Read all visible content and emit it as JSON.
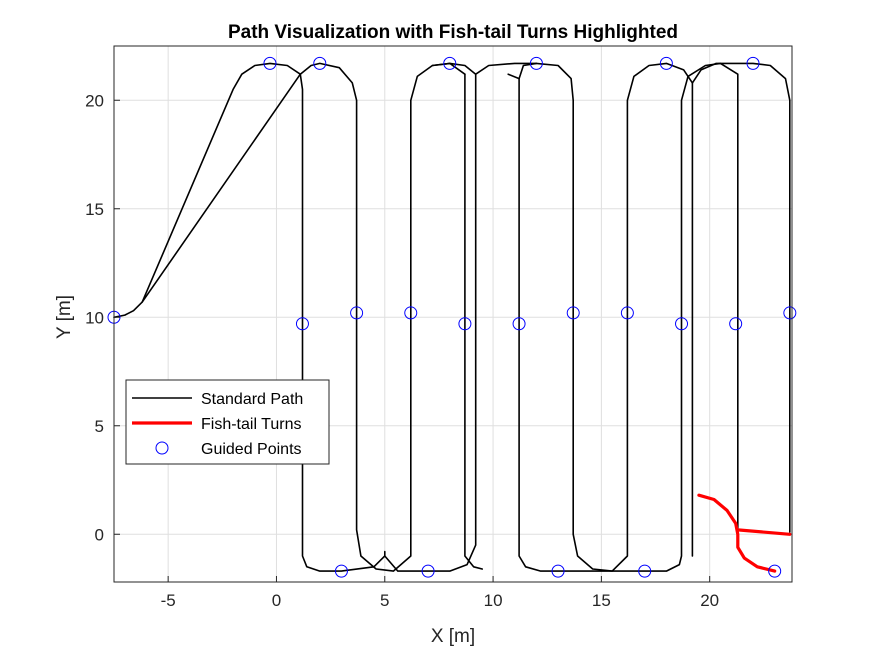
{
  "chart_data": {
    "type": "line",
    "title": "Path Visualization with Fish-tail Turns Highlighted",
    "xlabel": "X [m]",
    "ylabel": "Y [m]",
    "xlim": [
      -7.5,
      23.8
    ],
    "ylim": [
      -2.2,
      22.5
    ],
    "xticks": [
      -5,
      0,
      5,
      10,
      15,
      20
    ],
    "yticks": [
      0,
      5,
      10,
      15,
      20
    ],
    "grid": true,
    "legend_position": "lower-left",
    "colors": {
      "standard": "#000000",
      "fishtail": "#ff0000",
      "guided": "#0000ff"
    },
    "series": [
      {
        "name": "Standard Path",
        "style": "line",
        "segments": [
          [
            [
              -7.5,
              10.0
            ],
            [
              -7.0,
              10.1
            ],
            [
              -6.6,
              10.3
            ],
            [
              -6.2,
              10.7
            ],
            [
              -2.0,
              20.5
            ],
            [
              -1.6,
              21.2
            ],
            [
              -1.0,
              21.6
            ],
            [
              -0.3,
              21.7
            ],
            [
              0.5,
              21.6
            ],
            [
              1.1,
              21.2
            ],
            [
              1.2,
              20.5
            ],
            [
              1.2,
              -1.0
            ],
            [
              1.4,
              -1.5
            ],
            [
              2.0,
              -1.7
            ],
            [
              3.0,
              -1.7
            ],
            [
              4.5,
              -1.5
            ],
            [
              5.0,
              -1.0
            ],
            [
              5.0,
              -0.8
            ]
          ],
          [
            [
              -6.2,
              10.7
            ],
            [
              1.1,
              21.2
            ]
          ],
          [
            [
              1.1,
              21.2
            ],
            [
              1.6,
              21.6
            ],
            [
              2.0,
              21.7
            ],
            [
              2.9,
              21.5
            ],
            [
              3.5,
              20.8
            ],
            [
              3.7,
              20.0
            ],
            [
              3.7,
              0.2
            ],
            [
              3.9,
              -1.0
            ],
            [
              4.6,
              -1.6
            ],
            [
              5.4,
              -1.7
            ],
            [
              6.2,
              -1.0
            ],
            [
              6.2,
              20.0
            ],
            [
              6.5,
              21.1
            ],
            [
              7.2,
              21.6
            ],
            [
              8.0,
              21.7
            ],
            [
              8.7,
              21.2
            ]
          ],
          [
            [
              7.2,
              21.6
            ],
            [
              8.0,
              21.7
            ],
            [
              8.7,
              21.6
            ],
            [
              9.2,
              21.2
            ],
            [
              9.2,
              -0.5
            ],
            [
              8.8,
              -1.4
            ],
            [
              8.0,
              -1.7
            ],
            [
              7.0,
              -1.7
            ],
            [
              5.6,
              -1.7
            ],
            [
              5.0,
              -1.0
            ]
          ],
          [
            [
              8.7,
              21.2
            ],
            [
              8.7,
              20.0
            ],
            [
              8.7,
              -1.0
            ],
            [
              9.1,
              -1.5
            ],
            [
              9.5,
              -1.6
            ]
          ],
          [
            [
              9.2,
              21.2
            ],
            [
              9.8,
              21.6
            ],
            [
              11.0,
              21.7
            ],
            [
              12.0,
              21.7
            ],
            [
              13.0,
              21.6
            ],
            [
              13.6,
              21.0
            ],
            [
              13.7,
              20.0
            ],
            [
              13.7,
              0.0
            ],
            [
              13.9,
              -1.0
            ],
            [
              14.6,
              -1.6
            ],
            [
              15.5,
              -1.7
            ],
            [
              16.2,
              -1.0
            ],
            [
              16.2,
              20.0
            ],
            [
              16.5,
              21.1
            ],
            [
              17.2,
              21.6
            ],
            [
              18.0,
              21.7
            ],
            [
              18.8,
              21.4
            ],
            [
              19.2,
              20.8
            ],
            [
              19.2,
              -1.0
            ]
          ],
          [
            [
              11.2,
              21.0
            ],
            [
              11.2,
              -1.0
            ],
            [
              11.5,
              -1.5
            ],
            [
              12.2,
              -1.7
            ],
            [
              13.0,
              -1.7
            ],
            [
              14.0,
              -1.7
            ],
            [
              15.0,
              -1.7
            ],
            [
              16.0,
              -1.7
            ],
            [
              17.0,
              -1.7
            ],
            [
              18.0,
              -1.7
            ],
            [
              18.6,
              -1.4
            ],
            [
              18.7,
              -1.0
            ],
            [
              18.7,
              20.0
            ],
            [
              19.0,
              21.1
            ],
            [
              19.8,
              21.6
            ],
            [
              20.5,
              21.7
            ],
            [
              21.3,
              21.2
            ],
            [
              21.3,
              0.2
            ]
          ],
          [
            [
              10.7,
              21.2
            ],
            [
              11.2,
              21.0
            ]
          ],
          [
            [
              12.0,
              21.7
            ],
            [
              11.4,
              21.6
            ],
            [
              11.2,
              21.0
            ]
          ],
          [
            [
              19.2,
              20.8
            ],
            [
              19.6,
              21.4
            ],
            [
              20.3,
              21.7
            ],
            [
              21.5,
              21.7
            ],
            [
              22.0,
              21.7
            ],
            [
              22.8,
              21.6
            ],
            [
              23.5,
              21.0
            ],
            [
              23.7,
              20.0
            ],
            [
              23.7,
              0.1
            ]
          ]
        ]
      },
      {
        "name": "Fish-tail Turns",
        "style": "line",
        "segments": [
          [
            [
              19.5,
              1.8
            ],
            [
              20.2,
              1.6
            ],
            [
              20.8,
              1.1
            ],
            [
              21.2,
              0.5
            ],
            [
              21.3,
              0.0
            ],
            [
              21.3,
              -0.6
            ],
            [
              21.6,
              -1.1
            ],
            [
              22.2,
              -1.5
            ],
            [
              23.0,
              -1.7
            ]
          ],
          [
            [
              21.3,
              0.2
            ],
            [
              23.7,
              0.0
            ]
          ]
        ]
      },
      {
        "name": "Guided Points",
        "style": "marker",
        "points": [
          [
            -7.5,
            10.0
          ],
          [
            -0.3,
            21.7
          ],
          [
            2.0,
            21.7
          ],
          [
            1.2,
            9.7
          ],
          [
            3.7,
            10.2
          ],
          [
            6.2,
            10.2
          ],
          [
            8.7,
            9.7
          ],
          [
            8.0,
            21.7
          ],
          [
            12.0,
            21.7
          ],
          [
            11.2,
            9.7
          ],
          [
            13.7,
            10.2
          ],
          [
            16.2,
            10.2
          ],
          [
            18.7,
            9.7
          ],
          [
            18.0,
            21.7
          ],
          [
            22.0,
            21.7
          ],
          [
            21.2,
            9.7
          ],
          [
            23.7,
            10.2
          ],
          [
            3.0,
            -1.7
          ],
          [
            7.0,
            -1.7
          ],
          [
            13.0,
            -1.7
          ],
          [
            17.0,
            -1.7
          ],
          [
            23.0,
            -1.7
          ]
        ]
      }
    ]
  }
}
